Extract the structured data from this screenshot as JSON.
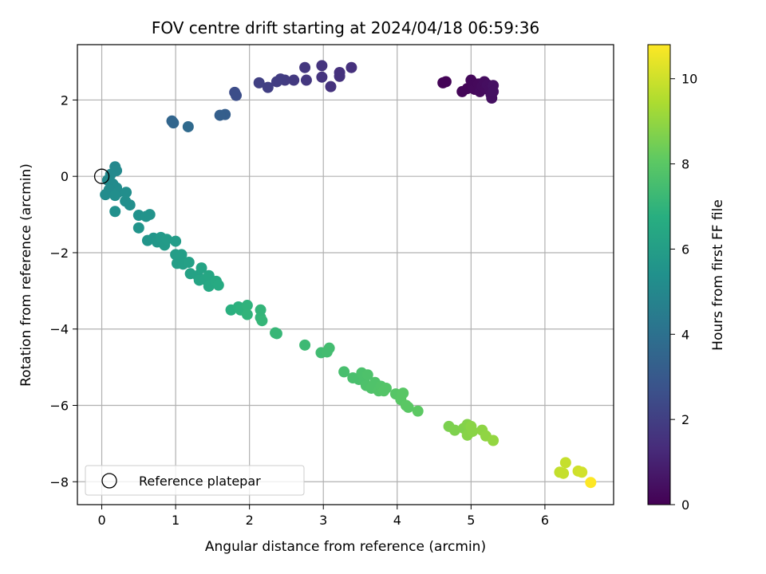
{
  "chart_data": {
    "type": "scatter",
    "title": "FOV centre drift starting at 2024/04/18 06:59:36",
    "xlabel": "Angular distance from reference (arcmin)",
    "ylabel": "Rotation from reference (arcmin)",
    "xlim": [
      -0.33,
      6.93
    ],
    "ylim": [
      -8.6,
      3.45
    ],
    "xticks": [
      0,
      1,
      2,
      3,
      4,
      5,
      6
    ],
    "yticks": [
      -8,
      -6,
      -4,
      -2,
      0,
      2
    ],
    "grid": true,
    "colormap": "viridis",
    "colorbar": {
      "label": "Hours from first FF file",
      "range": [
        0,
        10.8
      ],
      "ticks": [
        0,
        2,
        4,
        6,
        8,
        10
      ]
    },
    "legend": {
      "position": "lower-left",
      "entries": [
        {
          "label": "Reference platepar",
          "marker": "hollow-circle"
        }
      ]
    },
    "reference_point": {
      "x": 0,
      "y": 0
    },
    "points": [
      {
        "x": 4.62,
        "y": 2.45,
        "c": 0.1
      },
      {
        "x": 4.66,
        "y": 2.48,
        "c": 0.1
      },
      {
        "x": 4.88,
        "y": 2.22,
        "c": 0.15
      },
      {
        "x": 4.95,
        "y": 2.3,
        "c": 0.15
      },
      {
        "x": 5.0,
        "y": 2.52,
        "c": 0.2
      },
      {
        "x": 5.02,
        "y": 2.38,
        "c": 0.2
      },
      {
        "x": 5.05,
        "y": 2.28,
        "c": 0.25
      },
      {
        "x": 5.1,
        "y": 2.42,
        "c": 0.25
      },
      {
        "x": 5.12,
        "y": 2.22,
        "c": 0.3
      },
      {
        "x": 5.15,
        "y": 2.35,
        "c": 0.3
      },
      {
        "x": 5.18,
        "y": 2.48,
        "c": 0.35
      },
      {
        "x": 5.2,
        "y": 2.3,
        "c": 0.35
      },
      {
        "x": 5.22,
        "y": 2.4,
        "c": 0.4
      },
      {
        "x": 5.25,
        "y": 2.28,
        "c": 0.4
      },
      {
        "x": 5.27,
        "y": 2.15,
        "c": 0.45
      },
      {
        "x": 5.28,
        "y": 2.05,
        "c": 0.45
      },
      {
        "x": 5.3,
        "y": 2.38,
        "c": 0.5
      },
      {
        "x": 5.3,
        "y": 2.22,
        "c": 0.5
      },
      {
        "x": 3.38,
        "y": 2.85,
        "c": 1.5
      },
      {
        "x": 3.22,
        "y": 2.72,
        "c": 1.5
      },
      {
        "x": 3.22,
        "y": 2.62,
        "c": 1.55
      },
      {
        "x": 3.1,
        "y": 2.35,
        "c": 1.55
      },
      {
        "x": 2.98,
        "y": 2.9,
        "c": 1.6
      },
      {
        "x": 2.98,
        "y": 2.6,
        "c": 1.6
      },
      {
        "x": 2.75,
        "y": 2.85,
        "c": 1.7
      },
      {
        "x": 2.77,
        "y": 2.52,
        "c": 1.7
      },
      {
        "x": 2.6,
        "y": 2.52,
        "c": 1.8
      },
      {
        "x": 2.48,
        "y": 2.52,
        "c": 1.85
      },
      {
        "x": 2.42,
        "y": 2.55,
        "c": 1.9
      },
      {
        "x": 2.37,
        "y": 2.48,
        "c": 1.95
      },
      {
        "x": 2.25,
        "y": 2.33,
        "c": 2.0
      },
      {
        "x": 2.13,
        "y": 2.45,
        "c": 2.05
      },
      {
        "x": 1.8,
        "y": 2.2,
        "c": 2.5
      },
      {
        "x": 1.82,
        "y": 2.12,
        "c": 2.55
      },
      {
        "x": 1.67,
        "y": 1.62,
        "c": 3.2
      },
      {
        "x": 1.6,
        "y": 1.6,
        "c": 3.25
      },
      {
        "x": 0.95,
        "y": 1.45,
        "c": 3.5
      },
      {
        "x": 0.97,
        "y": 1.4,
        "c": 3.55
      },
      {
        "x": 1.17,
        "y": 1.3,
        "c": 3.7
      },
      {
        "x": 0.18,
        "y": 0.25,
        "c": 5.0
      },
      {
        "x": 0.2,
        "y": 0.15,
        "c": 5.05
      },
      {
        "x": 0.12,
        "y": 0.05,
        "c": 5.05
      },
      {
        "x": 0.08,
        "y": -0.1,
        "c": 5.1
      },
      {
        "x": 0.15,
        "y": -0.2,
        "c": 5.1
      },
      {
        "x": 0.2,
        "y": -0.3,
        "c": 5.15
      },
      {
        "x": 0.1,
        "y": -0.35,
        "c": 5.15
      },
      {
        "x": 0.05,
        "y": -0.48,
        "c": 5.2
      },
      {
        "x": 0.22,
        "y": -0.42,
        "c": 5.2
      },
      {
        "x": 0.18,
        "y": -0.5,
        "c": 5.25
      },
      {
        "x": 0.33,
        "y": -0.42,
        "c": 5.25
      },
      {
        "x": 0.32,
        "y": -0.65,
        "c": 5.3
      },
      {
        "x": 0.38,
        "y": -0.75,
        "c": 5.3
      },
      {
        "x": 0.18,
        "y": -0.92,
        "c": 5.35
      },
      {
        "x": 0.5,
        "y": -1.02,
        "c": 5.45
      },
      {
        "x": 0.6,
        "y": -1.05,
        "c": 5.5
      },
      {
        "x": 0.65,
        "y": -1.0,
        "c": 5.5
      },
      {
        "x": 0.5,
        "y": -1.35,
        "c": 5.55
      },
      {
        "x": 0.62,
        "y": -1.68,
        "c": 5.6
      },
      {
        "x": 0.7,
        "y": -1.62,
        "c": 5.65
      },
      {
        "x": 0.75,
        "y": -1.72,
        "c": 5.7
      },
      {
        "x": 0.8,
        "y": -1.6,
        "c": 5.75
      },
      {
        "x": 0.85,
        "y": -1.8,
        "c": 5.8
      },
      {
        "x": 0.88,
        "y": -1.65,
        "c": 5.85
      },
      {
        "x": 1.0,
        "y": -1.7,
        "c": 5.9
      },
      {
        "x": 1.0,
        "y": -2.05,
        "c": 5.95
      },
      {
        "x": 1.08,
        "y": -2.05,
        "c": 6.0
      },
      {
        "x": 1.02,
        "y": -2.28,
        "c": 6.0
      },
      {
        "x": 1.1,
        "y": -2.3,
        "c": 6.05
      },
      {
        "x": 1.18,
        "y": -2.25,
        "c": 6.1
      },
      {
        "x": 1.2,
        "y": -2.55,
        "c": 6.15
      },
      {
        "x": 1.3,
        "y": -2.6,
        "c": 6.2
      },
      {
        "x": 1.35,
        "y": -2.4,
        "c": 6.25
      },
      {
        "x": 1.32,
        "y": -2.72,
        "c": 6.3
      },
      {
        "x": 1.4,
        "y": -2.7,
        "c": 6.35
      },
      {
        "x": 1.45,
        "y": -2.6,
        "c": 6.4
      },
      {
        "x": 1.45,
        "y": -2.88,
        "c": 6.45
      },
      {
        "x": 1.55,
        "y": -2.75,
        "c": 6.5
      },
      {
        "x": 1.58,
        "y": -2.85,
        "c": 6.55
      },
      {
        "x": 1.75,
        "y": -3.5,
        "c": 6.8
      },
      {
        "x": 1.85,
        "y": -3.42,
        "c": 6.85
      },
      {
        "x": 1.88,
        "y": -3.5,
        "c": 6.9
      },
      {
        "x": 1.97,
        "y": -3.38,
        "c": 6.95
      },
      {
        "x": 1.97,
        "y": -3.62,
        "c": 7.0
      },
      {
        "x": 2.15,
        "y": -3.5,
        "c": 7.05
      },
      {
        "x": 2.15,
        "y": -3.7,
        "c": 7.05
      },
      {
        "x": 2.17,
        "y": -3.78,
        "c": 7.1
      },
      {
        "x": 2.35,
        "y": -4.1,
        "c": 7.15
      },
      {
        "x": 2.37,
        "y": -4.12,
        "c": 7.15
      },
      {
        "x": 2.75,
        "y": -4.42,
        "c": 7.3
      },
      {
        "x": 2.97,
        "y": -4.62,
        "c": 7.4
      },
      {
        "x": 3.05,
        "y": -4.6,
        "c": 7.45
      },
      {
        "x": 3.08,
        "y": -4.5,
        "c": 7.45
      },
      {
        "x": 3.28,
        "y": -5.12,
        "c": 7.55
      },
      {
        "x": 3.4,
        "y": -5.28,
        "c": 7.6
      },
      {
        "x": 3.48,
        "y": -5.32,
        "c": 7.6
      },
      {
        "x": 3.52,
        "y": -5.15,
        "c": 7.65
      },
      {
        "x": 3.55,
        "y": -5.35,
        "c": 7.65
      },
      {
        "x": 3.58,
        "y": -5.48,
        "c": 7.7
      },
      {
        "x": 3.6,
        "y": -5.2,
        "c": 7.7
      },
      {
        "x": 3.65,
        "y": -5.55,
        "c": 7.75
      },
      {
        "x": 3.7,
        "y": -5.4,
        "c": 7.75
      },
      {
        "x": 3.75,
        "y": -5.62,
        "c": 7.8
      },
      {
        "x": 3.78,
        "y": -5.5,
        "c": 7.8
      },
      {
        "x": 3.82,
        "y": -5.62,
        "c": 7.85
      },
      {
        "x": 3.85,
        "y": -5.55,
        "c": 7.85
      },
      {
        "x": 3.98,
        "y": -5.7,
        "c": 7.9
      },
      {
        "x": 4.05,
        "y": -5.85,
        "c": 7.95
      },
      {
        "x": 4.08,
        "y": -5.68,
        "c": 7.95
      },
      {
        "x": 4.12,
        "y": -6.0,
        "c": 8.0
      },
      {
        "x": 4.15,
        "y": -6.05,
        "c": 8.0
      },
      {
        "x": 4.28,
        "y": -6.15,
        "c": 8.05
      },
      {
        "x": 4.7,
        "y": -6.55,
        "c": 8.6
      },
      {
        "x": 4.78,
        "y": -6.65,
        "c": 8.65
      },
      {
        "x": 4.9,
        "y": -6.6,
        "c": 8.7
      },
      {
        "x": 4.95,
        "y": -6.5,
        "c": 8.75
      },
      {
        "x": 4.95,
        "y": -6.78,
        "c": 8.8
      },
      {
        "x": 5.02,
        "y": -6.68,
        "c": 8.85
      },
      {
        "x": 5.0,
        "y": -6.55,
        "c": 8.85
      },
      {
        "x": 5.15,
        "y": -6.65,
        "c": 8.9
      },
      {
        "x": 5.2,
        "y": -6.8,
        "c": 8.95
      },
      {
        "x": 5.3,
        "y": -6.92,
        "c": 9.0
      },
      {
        "x": 6.2,
        "y": -7.75,
        "c": 9.8
      },
      {
        "x": 6.28,
        "y": -7.5,
        "c": 9.85
      },
      {
        "x": 6.25,
        "y": -7.78,
        "c": 9.85
      },
      {
        "x": 6.45,
        "y": -7.72,
        "c": 10.0
      },
      {
        "x": 6.5,
        "y": -7.75,
        "c": 10.05
      },
      {
        "x": 6.62,
        "y": -8.02,
        "c": 10.8
      }
    ]
  }
}
